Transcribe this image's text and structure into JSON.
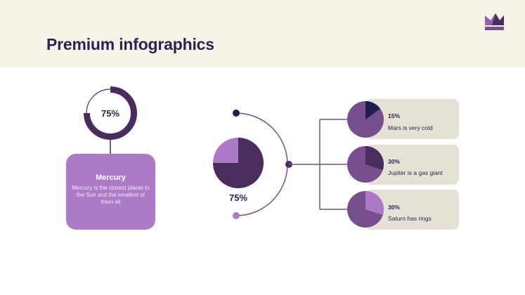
{
  "header": {
    "title": "Premium infographics",
    "logo_icon": "crown-icon"
  },
  "colors": {
    "dark": "#4a2c5e",
    "mid": "#774f8f",
    "light": "#ad7ac7",
    "navy": "#1f1d4b",
    "beige": "#e6e1d5"
  },
  "donut": {
    "value": 75,
    "label": "75%"
  },
  "mercury": {
    "title": "Mercury",
    "text": "Mercury is the closest planet to the Sun and the smallest of them all"
  },
  "main_pie": {
    "value": 75,
    "label": "75%"
  },
  "items": [
    {
      "value": 15,
      "pct": "15%",
      "label": "Mars is very cold",
      "slice_color": "#1f1d4b"
    },
    {
      "value": 30,
      "pct": "30%",
      "label": "Jupiter is a gas giant",
      "slice_color": "#4a2c5e"
    },
    {
      "value": 30,
      "pct": "30%",
      "label": "Saturn has rings",
      "slice_color": "#ad7ac7"
    }
  ]
}
